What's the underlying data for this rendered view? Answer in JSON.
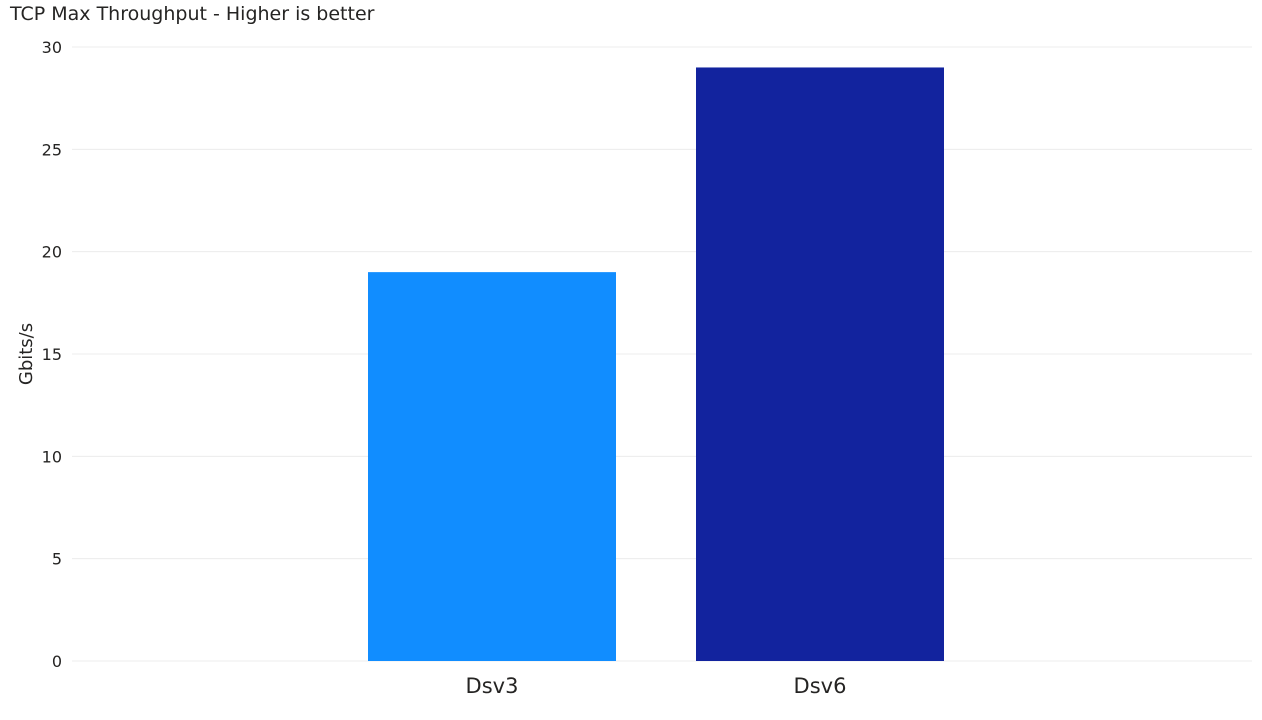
{
  "chart_data": {
    "type": "bar",
    "title": "TCP Max Throughput - Higher is better",
    "xlabel": "",
    "ylabel": "Gbits/s",
    "categories": [
      "Dsv3",
      "Dsv6"
    ],
    "values": [
      19,
      29
    ],
    "colors": [
      "#118DFF",
      "#12239E"
    ],
    "ylim": [
      0,
      30
    ],
    "yticks": [
      0,
      5,
      10,
      15,
      20,
      25,
      30
    ],
    "grid": true,
    "legend": "none"
  }
}
